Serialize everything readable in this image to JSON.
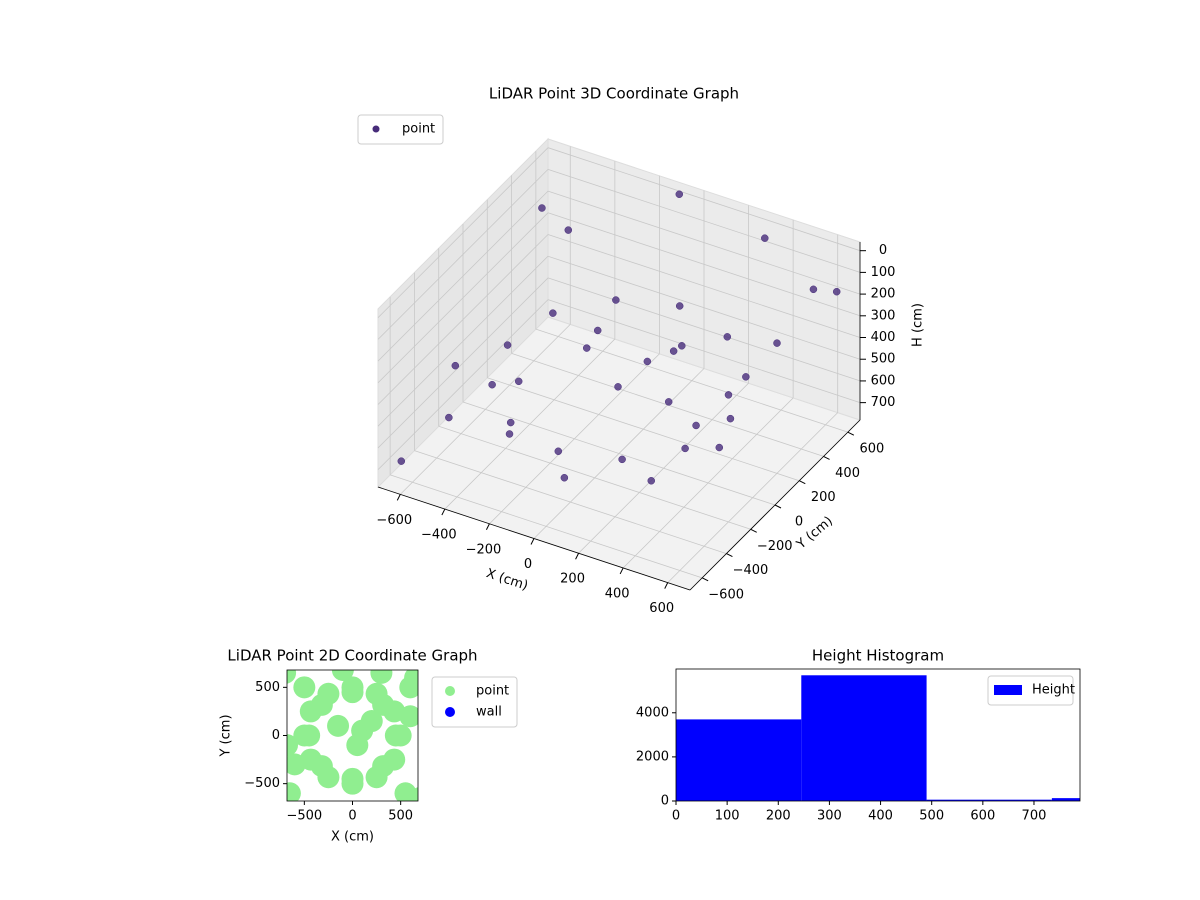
{
  "chart_data": [
    {
      "type": "scatter3d",
      "title": "LiDAR Point 3D Coordinate Graph",
      "xlabel": "X (cm)",
      "ylabel": "Y (cm)",
      "zlabel": "H (cm)",
      "zinverted": true,
      "xlim": [
        -700,
        700
      ],
      "ylim": [
        -700,
        700
      ],
      "zlim": [
        -40,
        780
      ],
      "xticks": [
        {
          "value": -600,
          "label": "−600"
        },
        {
          "value": -400,
          "label": "−400"
        },
        {
          "value": -200,
          "label": "−200"
        },
        0,
        200,
        400,
        600
      ],
      "yticks": [
        {
          "value": -600,
          "label": "−600"
        },
        {
          "value": -400,
          "label": "−400"
        },
        {
          "value": -200,
          "label": "−200"
        },
        0,
        200,
        400,
        600
      ],
      "zticks": [
        0,
        100,
        200,
        300,
        400,
        500,
        600,
        700
      ],
      "legend": "upper left",
      "series": [
        {
          "name": "point",
          "color": "#472c7a",
          "x": [
            500,
            433,
            250,
            0,
            -250,
            -433,
            -500,
            -433,
            -250,
            0,
            250,
            433,
            450,
            318,
            0,
            -318,
            -450,
            -318,
            0,
            318,
            100,
            -150,
            50,
            200,
            650,
            600,
            -650,
            -700,
            700,
            550,
            -600,
            -500,
            300,
            -100,
            600,
            -680
          ],
          "y": [
            0,
            250,
            433,
            500,
            433,
            250,
            0,
            -250,
            -433,
            -500,
            -433,
            -250,
            0,
            318,
            450,
            318,
            0,
            -318,
            -450,
            -318,
            50,
            100,
            -100,
            150,
            600,
            500,
            -600,
            650,
            -650,
            -600,
            -300,
            500,
            650,
            680,
            200,
            -100
          ],
          "z": [
            450,
            420,
            400,
            380,
            400,
            420,
            450,
            470,
            480,
            490,
            480,
            470,
            600,
            580,
            560,
            580,
            600,
            620,
            640,
            620,
            350,
            320,
            400,
            300,
            150,
            100,
            700,
            250,
            50,
            20,
            650,
            200,
            50,
            0,
            180,
            550
          ]
        }
      ]
    },
    {
      "type": "scatter",
      "title": "LiDAR Point 2D Coordinate Graph",
      "xlabel": "X (cm)",
      "ylabel": "Y (cm)",
      "xlim": [
        -680,
        680
      ],
      "ylim": [
        -680,
        680
      ],
      "xticks": [
        {
          "value": -500,
          "label": "−500"
        },
        0,
        500
      ],
      "yticks": [
        {
          "value": -500,
          "label": "−500"
        },
        0,
        500
      ],
      "legend": "outside right",
      "series": [
        {
          "name": "point",
          "color": "#90ee90",
          "x": [
            500,
            433,
            250,
            0,
            -250,
            -433,
            -500,
            -433,
            -250,
            0,
            250,
            433,
            450,
            318,
            0,
            -318,
            -450,
            -318,
            0,
            318,
            100,
            -150,
            50,
            200,
            650,
            600,
            -650,
            -700,
            700,
            550,
            -600,
            -500,
            300,
            -100,
            600,
            -680
          ],
          "y": [
            0,
            250,
            433,
            500,
            433,
            250,
            0,
            -250,
            -433,
            -500,
            -433,
            -250,
            0,
            318,
            450,
            318,
            0,
            -318,
            -450,
            -318,
            50,
            100,
            -100,
            150,
            600,
            500,
            -600,
            650,
            -650,
            -600,
            -300,
            500,
            650,
            680,
            200,
            -100
          ]
        },
        {
          "name": "wall",
          "color": "#0000ff",
          "x": [],
          "y": []
        }
      ]
    },
    {
      "type": "histogram",
      "title": "Height Histogram",
      "bins": [
        0,
        245,
        490,
        735,
        980
      ],
      "xlim": [
        0,
        790
      ],
      "ylim": [
        0,
        5985
      ],
      "xticks": [
        0,
        100,
        200,
        300,
        400,
        500,
        600,
        700
      ],
      "yticks": [
        0,
        2000,
        4000
      ],
      "legend": "upper right",
      "series": [
        {
          "name": "Height",
          "color": "#0000ff",
          "values": [
            3700,
            5700,
            60,
            130
          ]
        }
      ]
    }
  ]
}
